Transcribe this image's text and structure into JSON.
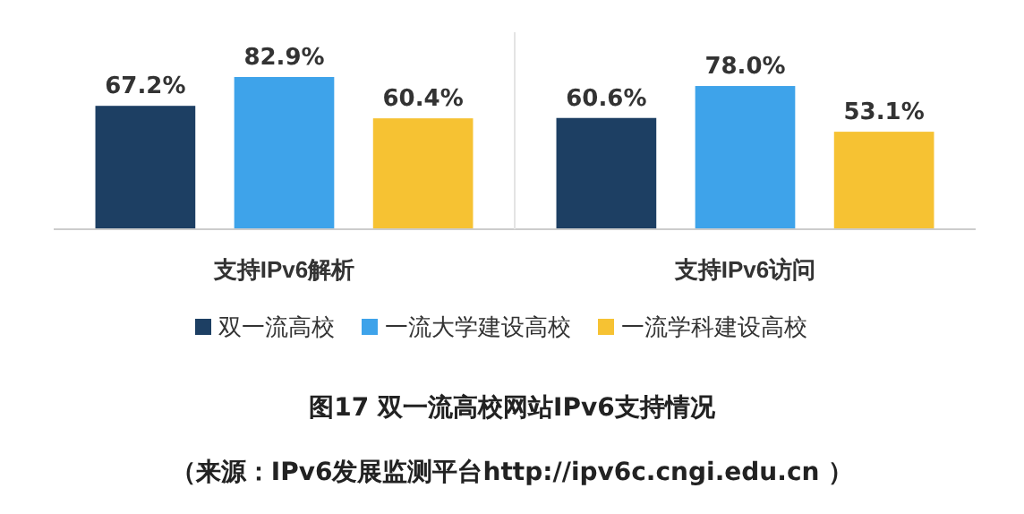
{
  "chart_data": {
    "type": "bar",
    "title": "图17  双一流高校网站IPv6支持情况",
    "categories": [
      "支持IPv6解析",
      "支持IPv6访问"
    ],
    "series": [
      {
        "name": "双一流高校",
        "color": "#1d3f63",
        "values": [
          67.2,
          60.6
        ],
        "value_labels": [
          "67.2%",
          "60.6%"
        ]
      },
      {
        "name": "一流大学建设高校",
        "color": "#3ea3ea",
        "values": [
          82.9,
          78.0
        ],
        "value_labels": [
          "82.9%",
          "78.0%"
        ]
      },
      {
        "name": "一流学科建设高校",
        "color": "#f6c233",
        "values": [
          60.4,
          53.1
        ],
        "value_labels": [
          "60.4%",
          "53.1%"
        ]
      }
    ],
    "annotations": [
      "（来源：IPv6发展监测平台http://ipv6c.cngi.edu.cn ）"
    ],
    "legend": "bottom",
    "grid": false
  }
}
